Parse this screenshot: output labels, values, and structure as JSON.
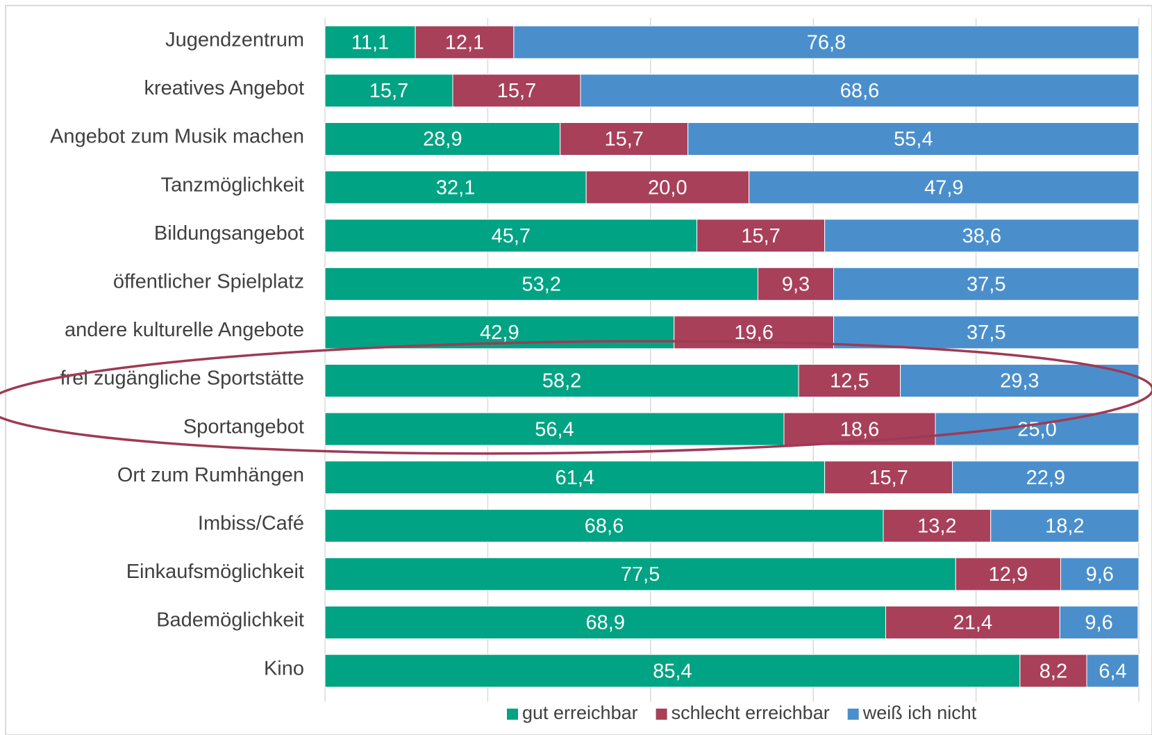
{
  "chart_data": {
    "type": "stacked_bar_horizontal",
    "categories": [
      "Jugendzentrum",
      "kreatives Angebot",
      "Angebot zum Musik machen",
      "Tanzmöglichkeit",
      "Bildungsangebot",
      "öffentlicher Spielplatz",
      "andere kulturelle Angebote",
      "frei zugängliche Sportstätte",
      "Sportangebot",
      "Ort zum Rumhängen",
      "Imbiss/Café",
      "Einkaufsmöglichkeit",
      "Bademöglichkeit",
      "Kino"
    ],
    "series": [
      {
        "name": "gut erreichbar",
        "color": "#00a383",
        "values": [
          11.1,
          15.7,
          28.9,
          32.1,
          45.7,
          53.2,
          42.9,
          58.2,
          56.4,
          61.4,
          68.6,
          77.5,
          68.9,
          85.4
        ],
        "value_labels": [
          "11,1",
          "15,7",
          "28,9",
          "32,1",
          "45,7",
          "53,2",
          "42,9",
          "58,2",
          "56,4",
          "61,4",
          "68,6",
          "77,5",
          "68,9",
          "85,4"
        ]
      },
      {
        "name": "schlecht erreichbar",
        "color": "#a8405a",
        "values": [
          12.1,
          15.7,
          15.7,
          20.0,
          15.7,
          9.3,
          19.6,
          12.5,
          18.6,
          15.7,
          13.2,
          12.9,
          21.4,
          8.2
        ],
        "value_labels": [
          "12,1",
          "15,7",
          "15,7",
          "20,0",
          "15,7",
          "9,3",
          "19,6",
          "12,5",
          "18,6",
          "15,7",
          "13,2",
          "12,9",
          "21,4",
          "8,2"
        ]
      },
      {
        "name": "weiß ich nicht",
        "color": "#4a8fcc",
        "values": [
          76.8,
          68.6,
          55.4,
          47.9,
          38.6,
          37.5,
          37.5,
          29.3,
          25.0,
          22.9,
          18.2,
          9.6,
          9.6,
          6.4
        ],
        "value_labels": [
          "76,8",
          "68,6",
          "55,4",
          "47,9",
          "38,6",
          "37,5",
          "37,5",
          "29,3",
          "25,0",
          "22,9",
          "18,2",
          "9,6",
          "9,6",
          "6,4"
        ]
      }
    ],
    "xlim": [
      0,
      100
    ],
    "xticks": [
      0,
      20,
      40,
      60,
      80,
      100
    ],
    "grid": true,
    "legend": "bottom"
  }
}
